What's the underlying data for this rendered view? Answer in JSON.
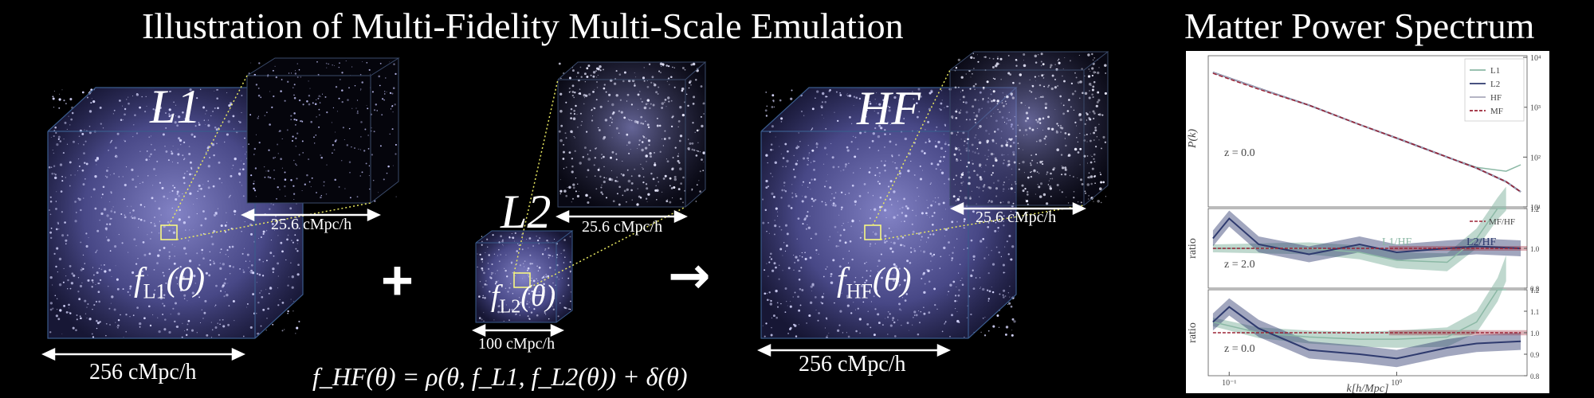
{
  "titles": {
    "left": "Illustration of Multi-Fidelity Multi-Scale Emulation",
    "right": "Matter Power Spectrum"
  },
  "sims": {
    "l1": {
      "tag": "L1",
      "box": "256 cMpc/h",
      "zoom": "25.6 cMpc/h",
      "func_f": "f",
      "func_sub": "L1",
      "func_arg": "(θ)"
    },
    "l2": {
      "tag": "L2",
      "box": "100 cMpc/h",
      "zoom": "25.6 cMpc/h",
      "func_f": "f",
      "func_sub": "L2",
      "func_arg": "(θ)"
    },
    "hf": {
      "tag": "HF",
      "box": "256 cMpc/h",
      "zoom": "25.6 cMpc/h",
      "func_f": "f",
      "func_sub": "HF",
      "func_arg": "(θ)"
    }
  },
  "operators": {
    "plus": "+",
    "arrow": "→"
  },
  "equation": "f_HF(θ) = ρ(θ, f_L1, f_L2(θ)) + δ(θ)",
  "chart_data": [
    {
      "type": "line",
      "ylabel": "P(k)",
      "annotation": "z = 0.0",
      "yscale": "log",
      "y_ticks": [
        "10¹",
        "10²",
        "10³",
        "10⁴"
      ],
      "legend": [
        "L1",
        "L2",
        "HF",
        "MF"
      ],
      "legend_position": "top-right",
      "series": [
        {
          "name": "L1",
          "color": "#8bb8a5",
          "x": [
            0.08,
            0.15,
            0.3,
            0.6,
            1.0,
            2.0,
            3.0,
            4.5,
            5.5
          ],
          "y": [
            5000,
            2400,
            1100,
            450,
            240,
            100,
            62,
            52,
            70
          ]
        },
        {
          "name": "L2",
          "color": "#2e3a6e",
          "x": [
            0.08,
            0.15,
            0.3,
            0.6,
            1.0,
            2.0,
            3.0,
            4.5,
            5.5
          ],
          "y": [
            5000,
            2400,
            1100,
            450,
            240,
            100,
            60,
            32,
            20
          ]
        },
        {
          "name": "HF",
          "color": "#a9aabb",
          "x": [
            0.08,
            0.15,
            0.3,
            0.6,
            1.0,
            2.0,
            3.0,
            4.5,
            5.5
          ],
          "y": [
            5000,
            2400,
            1100,
            450,
            240,
            100,
            60,
            32,
            20
          ]
        },
        {
          "name": "MF",
          "color": "#9b2335",
          "x": [
            0.08,
            0.15,
            0.3,
            0.6,
            1.0,
            2.0,
            3.0,
            4.5,
            5.5
          ],
          "y": [
            4800,
            2300,
            1100,
            450,
            240,
            100,
            60,
            32,
            20
          ]
        }
      ]
    },
    {
      "type": "line",
      "ylabel": "ratio",
      "annotation": "z = 2.0",
      "y_ticks": [
        "0.8",
        "1.0",
        "1.2"
      ],
      "ylim": [
        0.8,
        1.2
      ],
      "legend": [
        "MF/HF"
      ],
      "labels": [
        "L1/HF",
        "L2/HF"
      ],
      "series": [
        {
          "name": "L1/HF",
          "color": "#8bb8a5",
          "x": [
            0.08,
            0.15,
            0.3,
            0.6,
            1.0,
            2.0,
            3.0,
            4.0,
            4.5
          ],
          "y": [
            1.0,
            1.0,
            1.0,
            0.98,
            0.94,
            0.93,
            1.05,
            1.2,
            1.25
          ]
        },
        {
          "name": "L2/HF",
          "color": "#2e3a6e",
          "x": [
            0.08,
            0.1,
            0.15,
            0.3,
            0.6,
            1.0,
            2.0,
            3.0,
            5.5
          ],
          "y": [
            1.05,
            1.15,
            1.02,
            0.97,
            1.02,
            0.98,
            1.0,
            1.01,
            1.0
          ]
        },
        {
          "name": "MF/HF",
          "color": "#9b2335",
          "x": [
            0.08,
            5.5
          ],
          "y": [
            1.0,
            1.0
          ]
        }
      ]
    },
    {
      "type": "line",
      "ylabel": "ratio",
      "annotation": "z = 0.0",
      "xlabel": "k[h/Mpc]",
      "xscale": "log",
      "x_ticks": [
        "10⁻¹",
        "10⁰"
      ],
      "y_ticks": [
        "0.8",
        "0.9",
        "1.0",
        "1.1",
        "1.2"
      ],
      "ylim": [
        0.8,
        1.2
      ],
      "series": [
        {
          "name": "L1/HF",
          "color": "#8bb8a5",
          "x": [
            0.08,
            0.15,
            0.3,
            0.6,
            1.0,
            2.0,
            3.0,
            4.0,
            4.5
          ],
          "y": [
            1.05,
            1.0,
            0.98,
            0.97,
            0.97,
            0.98,
            1.05,
            1.2,
            1.3
          ]
        },
        {
          "name": "L2/HF",
          "color": "#2e3a6e",
          "x": [
            0.08,
            0.1,
            0.15,
            0.3,
            0.6,
            1.0,
            2.0,
            3.0,
            5.5
          ],
          "y": [
            1.05,
            1.12,
            1.02,
            0.92,
            0.9,
            0.88,
            0.93,
            0.95,
            0.96
          ]
        },
        {
          "name": "MF/HF",
          "color": "#9b2335",
          "x": [
            0.08,
            5.5
          ],
          "y": [
            1.0,
            1.0
          ]
        }
      ]
    }
  ]
}
